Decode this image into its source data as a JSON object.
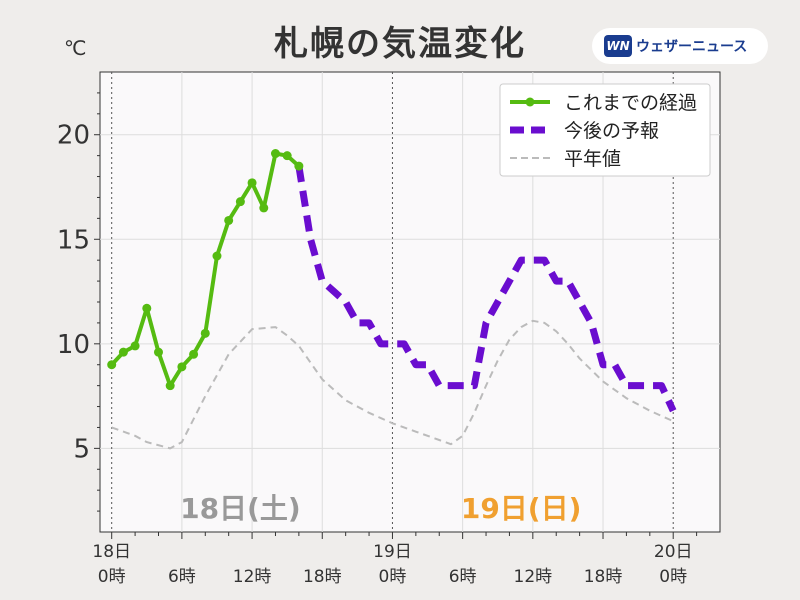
{
  "title": "札幌の気温変化",
  "unit": "℃",
  "logo": {
    "mark": "WN",
    "name": "ウェザーニュース"
  },
  "chart_data": {
    "type": "line",
    "ylim": [
      1,
      23
    ],
    "xlim": [
      -1,
      52
    ],
    "y_ticks": [
      5,
      10,
      15,
      20
    ],
    "x_ticks": [
      {
        "x": 0,
        "line1": "18日",
        "line2": "0時"
      },
      {
        "x": 6,
        "line1": "",
        "line2": "6時"
      },
      {
        "x": 12,
        "line1": "",
        "line2": "12時"
      },
      {
        "x": 18,
        "line1": "",
        "line2": "18時"
      },
      {
        "x": 24,
        "line1": "19日",
        "line2": "0時"
      },
      {
        "x": 30,
        "line1": "",
        "line2": "6時"
      },
      {
        "x": 36,
        "line1": "",
        "line2": "12時"
      },
      {
        "x": 42,
        "line1": "",
        "line2": "18時"
      },
      {
        "x": 48,
        "line1": "20日",
        "line2": "0時"
      }
    ],
    "day_labels": [
      {
        "text": "18日(土)",
        "x": 11,
        "color": "#999999"
      },
      {
        "text": "19日(日)",
        "x": 35,
        "color": "#f0a030"
      }
    ],
    "legend_position": "top-right",
    "series": [
      {
        "name": "これまでの経過",
        "style": "solid-markers",
        "color": "#55bb11",
        "x": [
          0,
          1,
          2,
          3,
          4,
          5,
          6,
          7,
          8,
          9,
          10,
          11,
          12,
          13,
          14,
          15,
          16
        ],
        "y": [
          9.0,
          9.6,
          9.9,
          11.7,
          9.6,
          8.0,
          8.9,
          9.5,
          10.5,
          14.2,
          15.9,
          16.8,
          17.7,
          16.5,
          19.1,
          19.0,
          18.5
        ]
      },
      {
        "name": "今後の予報",
        "style": "dashed",
        "color": "#6a0dcf",
        "x": [
          16,
          17,
          18,
          19,
          20,
          21,
          22,
          23,
          24,
          25,
          26,
          27,
          28,
          29,
          30,
          31,
          32,
          33,
          34,
          35,
          36,
          37,
          38,
          39,
          40,
          41,
          42,
          43,
          44,
          45,
          46,
          47,
          48
        ],
        "y": [
          18.5,
          15,
          13,
          12.5,
          12,
          11,
          11,
          10,
          10,
          10,
          9,
          9,
          8,
          8,
          8,
          8,
          11,
          12,
          13,
          14,
          14,
          14,
          13,
          13,
          12,
          11,
          9,
          9,
          8,
          8,
          8,
          8,
          6.8
        ]
      },
      {
        "name": "平年値",
        "style": "dashed-thin",
        "color": "#bbbbbb",
        "x": [
          0,
          2,
          3,
          5,
          6,
          8,
          10,
          12,
          14,
          15,
          16,
          17,
          18,
          20,
          22,
          24,
          26,
          28,
          29,
          30,
          31,
          32,
          33,
          34,
          35,
          36,
          37,
          38,
          39,
          40,
          42,
          44,
          46,
          48
        ],
        "y": [
          6.0,
          5.6,
          5.3,
          5.0,
          5.3,
          7.5,
          9.5,
          10.7,
          10.8,
          10.4,
          9.9,
          9.1,
          8.3,
          7.3,
          6.7,
          6.2,
          5.8,
          5.4,
          5.2,
          5.6,
          6.7,
          8.0,
          9.2,
          10.2,
          10.8,
          11.1,
          11.0,
          10.6,
          10.0,
          9.3,
          8.2,
          7.4,
          6.8,
          6.3
        ]
      }
    ]
  }
}
